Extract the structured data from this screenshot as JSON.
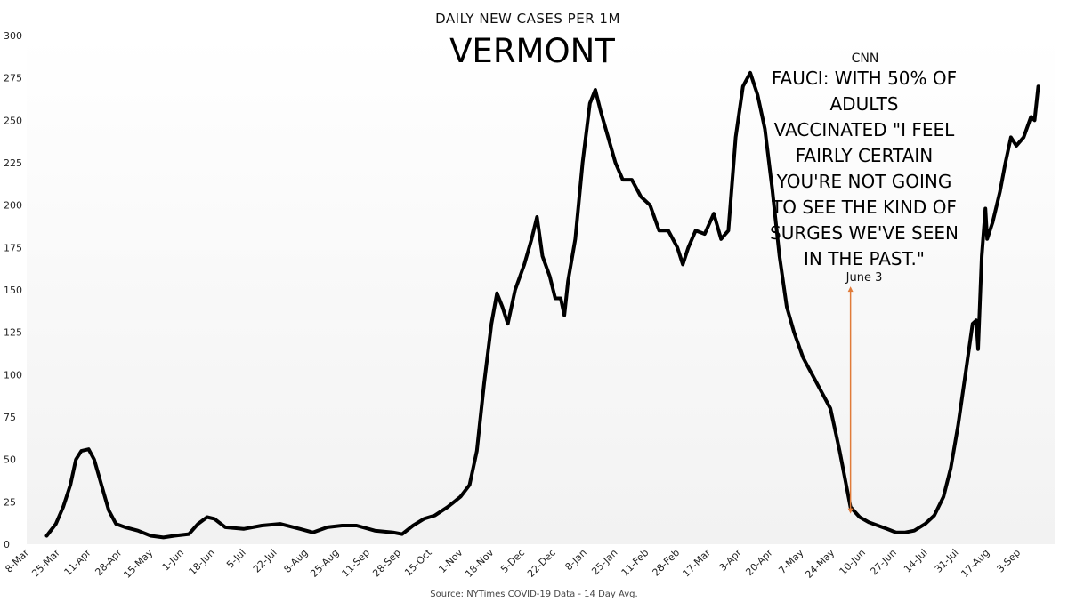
{
  "chart_data": {
    "type": "line",
    "subtitle": "DAILY NEW CASES PER 1M",
    "title": "VERMONT",
    "source": "Source: NYTimes COVID-19 Data - 14 Day Avg.",
    "ylim": [
      0,
      300
    ],
    "yticks": [
      0,
      25,
      50,
      75,
      100,
      125,
      150,
      175,
      200,
      225,
      250,
      275,
      300
    ],
    "x_start": "2020-03-08",
    "x_end": "2021-09-23",
    "xticks": [
      {
        "label": "8-Mar",
        "date": "2020-03-08"
      },
      {
        "label": "25-Mar",
        "date": "2020-03-25"
      },
      {
        "label": "11-Apr",
        "date": "2020-04-11"
      },
      {
        "label": "28-Apr",
        "date": "2020-04-28"
      },
      {
        "label": "15-May",
        "date": "2020-05-15"
      },
      {
        "label": "1-Jun",
        "date": "2020-06-01"
      },
      {
        "label": "18-Jun",
        "date": "2020-06-18"
      },
      {
        "label": "5-Jul",
        "date": "2020-07-05"
      },
      {
        "label": "22-Jul",
        "date": "2020-07-22"
      },
      {
        "label": "8-Aug",
        "date": "2020-08-08"
      },
      {
        "label": "25-Aug",
        "date": "2020-08-25"
      },
      {
        "label": "11-Sep",
        "date": "2020-09-11"
      },
      {
        "label": "28-Sep",
        "date": "2020-09-28"
      },
      {
        "label": "15-Oct",
        "date": "2020-10-15"
      },
      {
        "label": "1-Nov",
        "date": "2020-11-01"
      },
      {
        "label": "18-Nov",
        "date": "2020-11-18"
      },
      {
        "label": "5-Dec",
        "date": "2020-12-05"
      },
      {
        "label": "22-Dec",
        "date": "2020-12-22"
      },
      {
        "label": "8-Jan",
        "date": "2021-01-08"
      },
      {
        "label": "25-Jan",
        "date": "2021-01-25"
      },
      {
        "label": "11-Feb",
        "date": "2021-02-11"
      },
      {
        "label": "28-Feb",
        "date": "2021-02-28"
      },
      {
        "label": "17-Mar",
        "date": "2021-03-17"
      },
      {
        "label": "3-Apr",
        "date": "2021-04-03"
      },
      {
        "label": "20-Apr",
        "date": "2021-04-20"
      },
      {
        "label": "7-May",
        "date": "2021-05-07"
      },
      {
        "label": "24-May",
        "date": "2021-05-24"
      },
      {
        "label": "10-Jun",
        "date": "2021-06-10"
      },
      {
        "label": "27-Jun",
        "date": "2021-06-27"
      },
      {
        "label": "14-Jul",
        "date": "2021-07-14"
      },
      {
        "label": "31-Jul",
        "date": "2021-07-31"
      },
      {
        "label": "17-Aug",
        "date": "2021-08-17"
      },
      {
        "label": "3-Sep",
        "date": "2021-09-03"
      }
    ],
    "series": [
      {
        "name": "14 Day Avg.",
        "color": "#000000",
        "points": [
          [
            "2020-03-19",
            5
          ],
          [
            "2020-03-24",
            12
          ],
          [
            "2020-03-28",
            22
          ],
          [
            "2020-04-01",
            35
          ],
          [
            "2020-04-04",
            50
          ],
          [
            "2020-04-07",
            55
          ],
          [
            "2020-04-11",
            56
          ],
          [
            "2020-04-14",
            50
          ],
          [
            "2020-04-18",
            35
          ],
          [
            "2020-04-22",
            20
          ],
          [
            "2020-04-26",
            12
          ],
          [
            "2020-05-01",
            10
          ],
          [
            "2020-05-08",
            8
          ],
          [
            "2020-05-15",
            5
          ],
          [
            "2020-05-22",
            4
          ],
          [
            "2020-05-28",
            5
          ],
          [
            "2020-06-05",
            6
          ],
          [
            "2020-06-10",
            12
          ],
          [
            "2020-06-15",
            16
          ],
          [
            "2020-06-19",
            15
          ],
          [
            "2020-06-25",
            10
          ],
          [
            "2020-07-05",
            9
          ],
          [
            "2020-07-15",
            11
          ],
          [
            "2020-07-25",
            12
          ],
          [
            "2020-08-05",
            9
          ],
          [
            "2020-08-12",
            7
          ],
          [
            "2020-08-20",
            10
          ],
          [
            "2020-08-28",
            11
          ],
          [
            "2020-09-05",
            11
          ],
          [
            "2020-09-15",
            8
          ],
          [
            "2020-09-25",
            7
          ],
          [
            "2020-09-30",
            6
          ],
          [
            "2020-10-06",
            11
          ],
          [
            "2020-10-12",
            15
          ],
          [
            "2020-10-18",
            17
          ],
          [
            "2020-10-25",
            22
          ],
          [
            "2020-11-01",
            28
          ],
          [
            "2020-11-06",
            35
          ],
          [
            "2020-11-10",
            55
          ],
          [
            "2020-11-14",
            95
          ],
          [
            "2020-11-18",
            130
          ],
          [
            "2020-11-21",
            148
          ],
          [
            "2020-11-24",
            140
          ],
          [
            "2020-11-27",
            130
          ],
          [
            "2020-12-01",
            150
          ],
          [
            "2020-12-06",
            165
          ],
          [
            "2020-12-10",
            180
          ],
          [
            "2020-12-13",
            193
          ],
          [
            "2020-12-16",
            170
          ],
          [
            "2020-12-20",
            158
          ],
          [
            "2020-12-23",
            145
          ],
          [
            "2020-12-26",
            145
          ],
          [
            "2020-12-28",
            135
          ],
          [
            "2020-12-30",
            155
          ],
          [
            "2021-01-03",
            180
          ],
          [
            "2021-01-07",
            225
          ],
          [
            "2021-01-11",
            260
          ],
          [
            "2021-01-14",
            268
          ],
          [
            "2021-01-17",
            255
          ],
          [
            "2021-01-21",
            240
          ],
          [
            "2021-01-25",
            225
          ],
          [
            "2021-01-29",
            215
          ],
          [
            "2021-02-03",
            215
          ],
          [
            "2021-02-08",
            205
          ],
          [
            "2021-02-13",
            200
          ],
          [
            "2021-02-18",
            185
          ],
          [
            "2021-02-23",
            185
          ],
          [
            "2021-02-28",
            175
          ],
          [
            "2021-03-03",
            165
          ],
          [
            "2021-03-06",
            175
          ],
          [
            "2021-03-10",
            185
          ],
          [
            "2021-03-15",
            183
          ],
          [
            "2021-03-20",
            195
          ],
          [
            "2021-03-24",
            180
          ],
          [
            "2021-03-28",
            185
          ],
          [
            "2021-04-01",
            240
          ],
          [
            "2021-04-05",
            270
          ],
          [
            "2021-04-09",
            278
          ],
          [
            "2021-04-13",
            265
          ],
          [
            "2021-04-17",
            245
          ],
          [
            "2021-04-21",
            210
          ],
          [
            "2021-04-25",
            170
          ],
          [
            "2021-04-29",
            140
          ],
          [
            "2021-05-03",
            125
          ],
          [
            "2021-05-08",
            110
          ],
          [
            "2021-05-13",
            100
          ],
          [
            "2021-05-18",
            90
          ],
          [
            "2021-05-23",
            80
          ],
          [
            "2021-05-28",
            55
          ],
          [
            "2021-06-03",
            22
          ],
          [
            "2021-06-08",
            16
          ],
          [
            "2021-06-13",
            13
          ],
          [
            "2021-06-18",
            11
          ],
          [
            "2021-06-23",
            9
          ],
          [
            "2021-06-28",
            7
          ],
          [
            "2021-07-03",
            7
          ],
          [
            "2021-07-08",
            8
          ],
          [
            "2021-07-14",
            12
          ],
          [
            "2021-07-19",
            17
          ],
          [
            "2021-07-24",
            28
          ],
          [
            "2021-07-28",
            45
          ],
          [
            "2021-08-01",
            70
          ],
          [
            "2021-08-05",
            100
          ],
          [
            "2021-08-09",
            130
          ],
          [
            "2021-08-11",
            132
          ],
          [
            "2021-08-12",
            115
          ],
          [
            "2021-08-14",
            170
          ],
          [
            "2021-08-16",
            198
          ],
          [
            "2021-08-17",
            180
          ],
          [
            "2021-08-20",
            190
          ],
          [
            "2021-08-24",
            208
          ],
          [
            "2021-08-27",
            225
          ],
          [
            "2021-08-30",
            240
          ],
          [
            "2021-09-02",
            235
          ],
          [
            "2021-09-06",
            240
          ],
          [
            "2021-09-10",
            252
          ],
          [
            "2021-09-12",
            250
          ],
          [
            "2021-09-14",
            270
          ]
        ]
      }
    ],
    "annotation": {
      "source_label": "CNN",
      "quote_lines": [
        "FAUCI: WITH 50% OF",
        "ADULTS",
        "VACCINATED \"I FEEL",
        "FAIRLY CERTAIN",
        "YOU'RE NOT GOING",
        "TO SEE THE KIND OF",
        "SURGES WE'VE SEEN",
        "IN THE PAST.\""
      ],
      "date_label": "June 3",
      "date": "2021-06-03",
      "y_top": 152,
      "y_bottom": 18,
      "arrow_color": "#e07b39"
    }
  }
}
